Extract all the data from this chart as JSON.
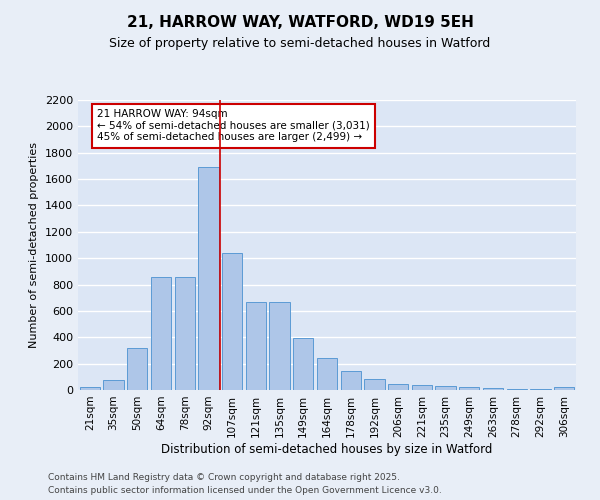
{
  "title": "21, HARROW WAY, WATFORD, WD19 5EH",
  "subtitle": "Size of property relative to semi-detached houses in Watford",
  "xlabel": "Distribution of semi-detached houses by size in Watford",
  "ylabel": "Number of semi-detached properties",
  "bar_labels": [
    "21sqm",
    "35sqm",
    "50sqm",
    "64sqm",
    "78sqm",
    "92sqm",
    "107sqm",
    "121sqm",
    "135sqm",
    "149sqm",
    "164sqm",
    "178sqm",
    "192sqm",
    "206sqm",
    "221sqm",
    "235sqm",
    "249sqm",
    "263sqm",
    "278sqm",
    "292sqm",
    "306sqm"
  ],
  "bar_values": [
    20,
    75,
    315,
    860,
    860,
    1690,
    1040,
    670,
    670,
    395,
    240,
    145,
    80,
    45,
    35,
    30,
    20,
    15,
    5,
    5,
    20
  ],
  "bar_color": "#aec6e8",
  "bar_edge_color": "#5b9bd5",
  "background_color": "#dce6f5",
  "fig_background_color": "#e8eef7",
  "grid_color": "#ffffff",
  "vline_x": 5.5,
  "vline_color": "#cc0000",
  "annotation_text": "21 HARROW WAY: 94sqm\n← 54% of semi-detached houses are smaller (3,031)\n45% of semi-detached houses are larger (2,499) →",
  "annotation_box_color": "#ffffff",
  "annotation_box_edge": "#cc0000",
  "footer_line1": "Contains HM Land Registry data © Crown copyright and database right 2025.",
  "footer_line2": "Contains public sector information licensed under the Open Government Licence v3.0.",
  "ylim": [
    0,
    2200
  ],
  "yticks": [
    0,
    200,
    400,
    600,
    800,
    1000,
    1200,
    1400,
    1600,
    1800,
    2000,
    2200
  ]
}
